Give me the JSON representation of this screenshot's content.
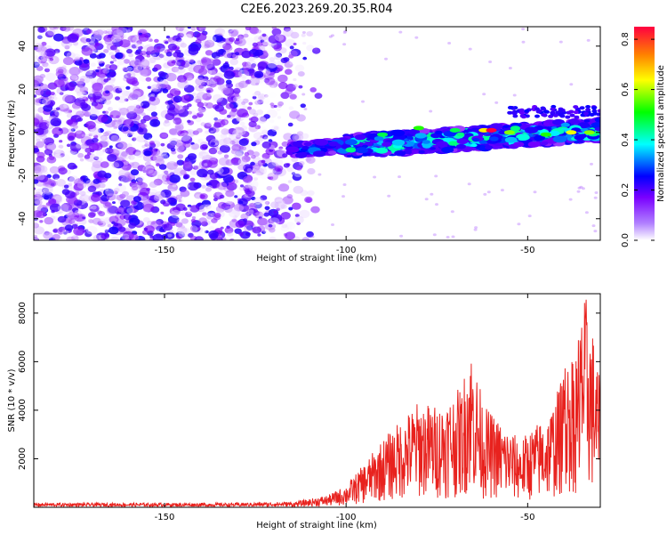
{
  "title": "C2E6.2023.269.20.35.R04",
  "chart_data": [
    {
      "type": "heatmap",
      "xlabel": "Height of straight line (km)",
      "ylabel": "Frequency (Hz)",
      "xlim": [
        -186,
        -30
      ],
      "ylim": [
        -50,
        49
      ],
      "xticks": [
        -150,
        -100,
        -50
      ],
      "yticks": [
        -40,
        -20,
        0,
        20,
        40
      ],
      "colorbar": {
        "label": "Normalized spectral amplitude",
        "range": [
          0,
          0.85
        ],
        "ticks": [
          0.0,
          0.2,
          0.4,
          0.6,
          0.8
        ],
        "colors": [
          "#ffffff",
          "#7a00ff",
          "#0000ff",
          "#00ffff",
          "#00ff00",
          "#ffff00",
          "#ff8000",
          "#ff0040"
        ]
      },
      "features": {
        "noise_region_x": [
          -186,
          -112
        ],
        "signal_band_x": [
          -115,
          -30
        ],
        "signal_center_hz_start": -8,
        "signal_center_hz_end": 1,
        "peak_x": -60,
        "peak_amplitude": 0.85
      }
    },
    {
      "type": "line",
      "xlabel": "Height of straight line (km)",
      "ylabel": "SNR (10 * v/v)",
      "xlim": [
        -186,
        -30
      ],
      "ylim": [
        0,
        8800
      ],
      "xticks": [
        -150,
        -100,
        -50
      ],
      "yticks": [
        2000,
        4000,
        6000,
        8000
      ],
      "series_color": "#e8221e",
      "envelope": [
        {
          "x": -186,
          "y": 150
        },
        {
          "x": -130,
          "y": 150
        },
        {
          "x": -115,
          "y": 200
        },
        {
          "x": -105,
          "y": 500
        },
        {
          "x": -100,
          "y": 900
        },
        {
          "x": -95,
          "y": 1800
        },
        {
          "x": -90,
          "y": 2800
        },
        {
          "x": -85,
          "y": 3600
        },
        {
          "x": -80,
          "y": 4400
        },
        {
          "x": -75,
          "y": 4200
        },
        {
          "x": -68,
          "y": 5000
        },
        {
          "x": -66,
          "y": 6900
        },
        {
          "x": -62,
          "y": 4200
        },
        {
          "x": -58,
          "y": 3600
        },
        {
          "x": -52,
          "y": 2800
        },
        {
          "x": -48,
          "y": 3400
        },
        {
          "x": -44,
          "y": 3900
        },
        {
          "x": -40,
          "y": 5600
        },
        {
          "x": -37,
          "y": 6800
        },
        {
          "x": -34,
          "y": 8800
        },
        {
          "x": -32,
          "y": 7200
        },
        {
          "x": -30,
          "y": 5100
        }
      ]
    }
  ]
}
